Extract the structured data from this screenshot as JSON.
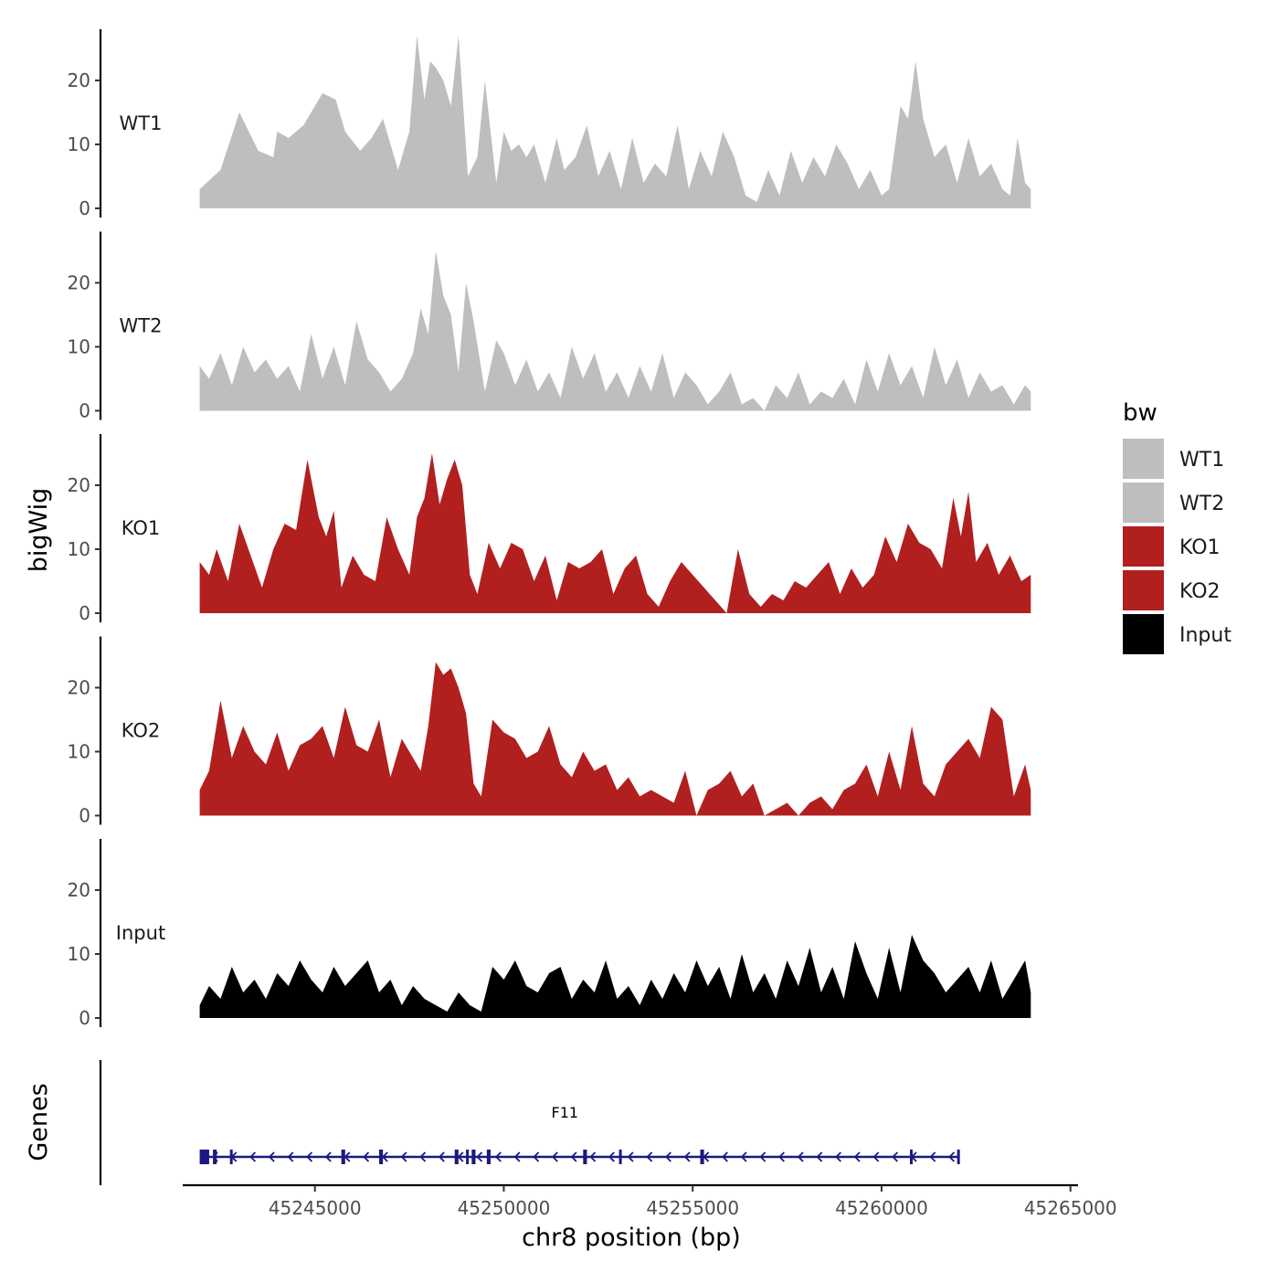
{
  "chart_data": {
    "type": "area",
    "title": "",
    "ylabel": "bigWig",
    "gene_track_label": "Genes",
    "xlabel": "chr8 position (bp)",
    "xlim": [
      41500,
      65200
    ],
    "x_offset": 45200000,
    "x_ticks": [
      {
        "value": 45245000,
        "label": "45245000"
      },
      {
        "value": 45250000,
        "label": "45250000"
      },
      {
        "value": 45255000,
        "label": "45255000"
      },
      {
        "value": 45260000,
        "label": "45260000"
      },
      {
        "value": 45265000,
        "label": "45265000"
      }
    ],
    "ylim": [
      0,
      28
    ],
    "y_ticks": [
      {
        "value": 0,
        "label": "0"
      },
      {
        "value": 10,
        "label": "10"
      },
      {
        "value": 20,
        "label": "20"
      }
    ],
    "legend": {
      "title": "bw",
      "position": "right",
      "entries": [
        {
          "label": "WT1",
          "color": "#bebebe"
        },
        {
          "label": "WT2",
          "color": "#bebebe"
        },
        {
          "label": "KO1",
          "color": "#b21f1f"
        },
        {
          "label": "KO2",
          "color": "#b21f1f"
        },
        {
          "label": "Input",
          "color": "#000000"
        }
      ]
    },
    "series": [
      {
        "name": "WT1",
        "color": "#bebebe",
        "x": [
          41950,
          42500,
          43000,
          43500,
          43900,
          44000,
          44300,
          44700,
          45200,
          45550,
          45800,
          46200,
          46500,
          46800,
          47200,
          47500,
          47700,
          47900,
          48050,
          48200,
          48400,
          48600,
          48800,
          49050,
          49300,
          49500,
          49800,
          50000,
          50200,
          50400,
          50600,
          50800,
          51100,
          51400,
          51600,
          51900,
          52200,
          52500,
          52800,
          53100,
          53400,
          53700,
          54000,
          54300,
          54600,
          54900,
          55200,
          55500,
          55800,
          56100,
          56400,
          56700,
          57000,
          57300,
          57600,
          57900,
          58200,
          58500,
          58800,
          59100,
          59400,
          59700,
          60000,
          60200,
          60500,
          60700,
          60900,
          61100,
          61400,
          61700,
          62000,
          62300,
          62600,
          62900,
          63200,
          63400,
          63600,
          63800,
          63950
        ],
        "y": [
          3,
          6,
          15,
          9,
          8,
          12,
          11,
          13,
          18,
          17,
          12,
          9,
          11,
          14,
          6,
          12,
          27,
          17,
          23,
          22,
          20,
          16,
          27,
          5,
          8,
          20,
          4,
          12,
          9,
          10,
          8,
          10,
          4,
          11,
          6,
          8,
          13,
          5,
          9,
          3,
          11,
          4,
          7,
          5,
          13,
          3,
          9,
          5,
          12,
          8,
          2,
          1,
          6,
          2,
          9,
          4,
          8,
          5,
          10,
          7,
          3,
          6,
          2,
          3,
          16,
          14,
          23,
          14,
          8,
          10,
          4,
          11,
          5,
          7,
          3,
          2,
          11,
          4,
          3
        ]
      },
      {
        "name": "WT2",
        "color": "#bebebe",
        "x": [
          41950,
          42200,
          42500,
          42800,
          43100,
          43400,
          43700,
          44000,
          44300,
          44600,
          44900,
          45200,
          45500,
          45800,
          46100,
          46400,
          46700,
          47000,
          47300,
          47600,
          47800,
          48000,
          48200,
          48400,
          48600,
          48800,
          49000,
          49200,
          49500,
          49800,
          50000,
          50300,
          50600,
          50900,
          51200,
          51500,
          51800,
          52100,
          52400,
          52700,
          53000,
          53300,
          53600,
          53900,
          54200,
          54500,
          54800,
          55100,
          55400,
          55700,
          56000,
          56300,
          56600,
          56900,
          57200,
          57500,
          57800,
          58100,
          58400,
          58700,
          59000,
          59300,
          59600,
          59900,
          60200,
          60500,
          60800,
          61100,
          61400,
          61700,
          62000,
          62300,
          62600,
          62900,
          63200,
          63500,
          63800,
          63950
        ],
        "y": [
          7,
          5,
          9,
          4,
          10,
          6,
          8,
          5,
          7,
          3,
          12,
          5,
          10,
          4,
          14,
          8,
          6,
          3,
          5,
          9,
          16,
          12,
          25,
          18,
          15,
          6,
          20,
          14,
          3,
          11,
          9,
          4,
          8,
          3,
          6,
          2,
          10,
          5,
          9,
          3,
          6,
          2,
          7,
          3,
          9,
          2,
          6,
          4,
          1,
          3,
          6,
          1,
          2,
          0,
          4,
          2,
          6,
          1,
          3,
          2,
          5,
          1,
          8,
          3,
          9,
          4,
          7,
          2,
          10,
          4,
          8,
          2,
          6,
          3,
          4,
          1,
          4,
          3
        ]
      },
      {
        "name": "KO1",
        "color": "#b21f1f",
        "x": [
          41950,
          42200,
          42400,
          42700,
          43000,
          43300,
          43600,
          43900,
          44200,
          44500,
          44800,
          45100,
          45300,
          45500,
          45700,
          46000,
          46300,
          46600,
          46900,
          47200,
          47500,
          47700,
          47900,
          48100,
          48300,
          48500,
          48700,
          48900,
          49100,
          49300,
          49600,
          49900,
          50200,
          50500,
          50800,
          51100,
          51400,
          51700,
          52000,
          52300,
          52600,
          52900,
          53200,
          53500,
          53800,
          54100,
          54400,
          54700,
          55000,
          55300,
          55600,
          55900,
          56200,
          56500,
          56800,
          57100,
          57400,
          57700,
          58000,
          58300,
          58600,
          58900,
          59200,
          59500,
          59800,
          60100,
          60400,
          60700,
          61000,
          61300,
          61600,
          61900,
          62100,
          62300,
          62500,
          62800,
          63100,
          63400,
          63700,
          63950
        ],
        "y": [
          8,
          6,
          10,
          5,
          14,
          9,
          4,
          10,
          14,
          13,
          24,
          15,
          12,
          16,
          4,
          9,
          6,
          5,
          15,
          10,
          6,
          15,
          18,
          25,
          17,
          21,
          24,
          20,
          6,
          3,
          11,
          7,
          11,
          10,
          5,
          9,
          2,
          8,
          7,
          8,
          10,
          3,
          7,
          9,
          3,
          1,
          5,
          8,
          6,
          4,
          2,
          0,
          10,
          3,
          1,
          3,
          2,
          5,
          4,
          6,
          8,
          3,
          7,
          4,
          6,
          12,
          8,
          14,
          11,
          10,
          7,
          18,
          12,
          19,
          8,
          11,
          6,
          9,
          5,
          6
        ]
      },
      {
        "name": "KO2",
        "color": "#b21f1f",
        "x": [
          41950,
          42200,
          42500,
          42800,
          43100,
          43400,
          43700,
          44000,
          44300,
          44600,
          44900,
          45200,
          45500,
          45800,
          46100,
          46400,
          46700,
          47000,
          47300,
          47600,
          47800,
          48000,
          48200,
          48400,
          48600,
          48800,
          49000,
          49200,
          49400,
          49700,
          50000,
          50300,
          50600,
          50900,
          51200,
          51500,
          51800,
          52100,
          52400,
          52700,
          53000,
          53300,
          53600,
          53900,
          54200,
          54500,
          54800,
          55100,
          55400,
          55700,
          56000,
          56300,
          56600,
          56900,
          57200,
          57500,
          57800,
          58100,
          58400,
          58700,
          59000,
          59300,
          59600,
          59900,
          60200,
          60500,
          60800,
          61100,
          61400,
          61700,
          62000,
          62300,
          62600,
          62900,
          63200,
          63500,
          63800,
          63950
        ],
        "y": [
          4,
          7,
          18,
          9,
          14,
          10,
          8,
          13,
          7,
          11,
          12,
          14,
          9,
          17,
          11,
          10,
          15,
          6,
          12,
          9,
          7,
          14,
          24,
          22,
          23,
          20,
          16,
          5,
          3,
          15,
          13,
          12,
          9,
          10,
          14,
          8,
          6,
          10,
          7,
          8,
          4,
          6,
          3,
          4,
          3,
          2,
          7,
          0,
          4,
          5,
          7,
          3,
          5,
          0,
          1,
          2,
          0,
          2,
          3,
          1,
          4,
          5,
          8,
          3,
          10,
          4,
          14,
          5,
          3,
          8,
          10,
          12,
          9,
          17,
          15,
          3,
          8,
          4
        ]
      },
      {
        "name": "Input",
        "color": "#000000",
        "x": [
          41950,
          42200,
          42500,
          42800,
          43100,
          43400,
          43700,
          44000,
          44300,
          44600,
          44900,
          45200,
          45500,
          45800,
          46100,
          46400,
          46700,
          47000,
          47300,
          47600,
          47900,
          48200,
          48500,
          48800,
          49100,
          49400,
          49700,
          50000,
          50300,
          50600,
          50900,
          51200,
          51500,
          51800,
          52100,
          52400,
          52700,
          53000,
          53300,
          53600,
          53900,
          54200,
          54500,
          54800,
          55100,
          55400,
          55700,
          56000,
          56300,
          56600,
          56900,
          57200,
          57500,
          57800,
          58100,
          58400,
          58700,
          59000,
          59300,
          59600,
          59900,
          60200,
          60500,
          60800,
          61100,
          61400,
          61700,
          62000,
          62300,
          62600,
          62900,
          63200,
          63500,
          63800,
          63950
        ],
        "y": [
          2,
          5,
          3,
          8,
          4,
          6,
          3,
          7,
          5,
          9,
          6,
          4,
          8,
          5,
          7,
          9,
          4,
          6,
          2,
          5,
          3,
          2,
          1,
          4,
          2,
          1,
          8,
          6,
          9,
          5,
          4,
          7,
          8,
          3,
          6,
          4,
          9,
          3,
          5,
          2,
          6,
          3,
          7,
          4,
          9,
          5,
          8,
          3,
          10,
          4,
          7,
          3,
          9,
          5,
          11,
          4,
          8,
          3,
          12,
          7,
          3,
          11,
          4,
          13,
          9,
          7,
          4,
          6,
          8,
          4,
          9,
          3,
          6,
          9,
          4
        ]
      }
    ],
    "gene_track": {
      "gene": "F11",
      "color": "#1a1a80",
      "strand": "-",
      "start": 41950,
      "end": 62050,
      "exons": [
        [
          41950,
          42200
        ],
        [
          42300,
          42400
        ],
        [
          42750,
          42800
        ],
        [
          45700,
          45800
        ],
        [
          46700,
          46800
        ],
        [
          48700,
          48800
        ],
        [
          49000,
          49050
        ],
        [
          49150,
          49250
        ],
        [
          49550,
          49650
        ],
        [
          52100,
          52200
        ],
        [
          53050,
          53100
        ],
        [
          55200,
          55300
        ],
        [
          60750,
          60800
        ],
        [
          62000,
          62050
        ]
      ]
    }
  }
}
